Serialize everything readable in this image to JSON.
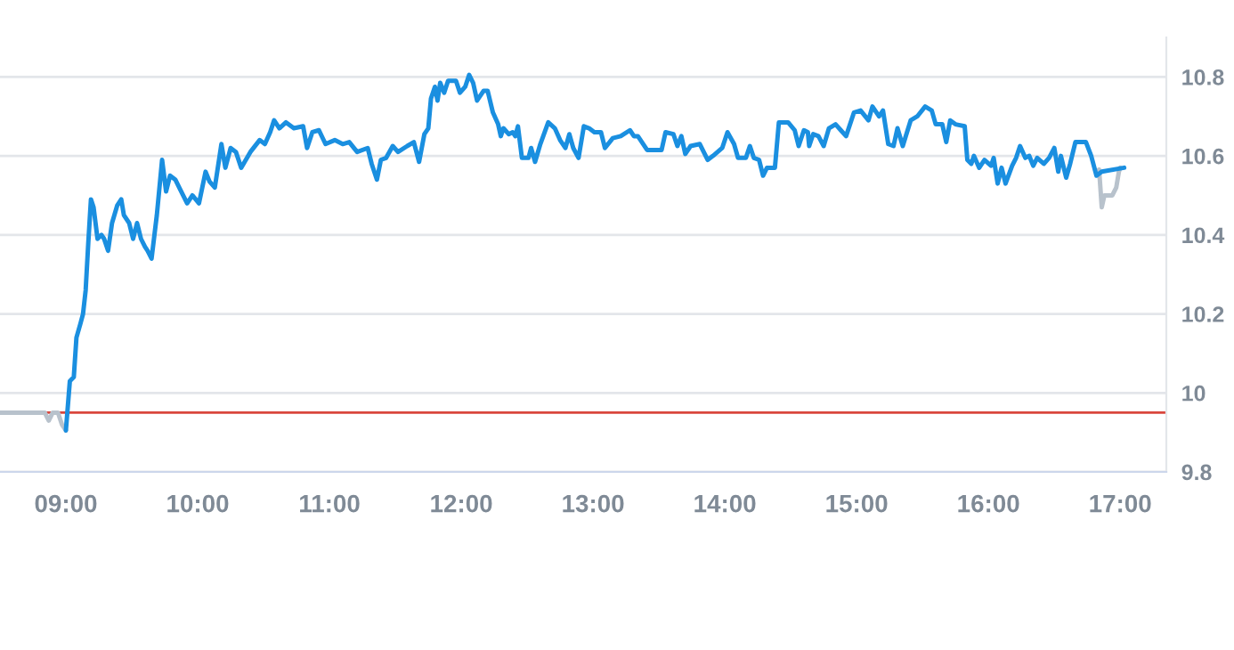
{
  "chart_data": {
    "type": "line",
    "xlim": [
      8.5,
      17.35
    ],
    "ylim": [
      9.8,
      10.9
    ],
    "xticks": [
      {
        "value": 9,
        "label": "09:00"
      },
      {
        "value": 10,
        "label": "10:00"
      },
      {
        "value": 11,
        "label": "11:00"
      },
      {
        "value": 12,
        "label": "12:00"
      },
      {
        "value": 13,
        "label": "13:00"
      },
      {
        "value": 14,
        "label": "14:00"
      },
      {
        "value": 15,
        "label": "15:00"
      },
      {
        "value": 16,
        "label": "16:00"
      },
      {
        "value": 17,
        "label": "17:00"
      }
    ],
    "yticks": [
      9.8,
      10,
      10.2,
      10.4,
      10.6,
      10.8
    ],
    "grid": "y",
    "line_style": "solid",
    "marker": "none",
    "ref_lines": [
      {
        "axis": "y",
        "value": 9.95,
        "color": "#d9463c"
      }
    ],
    "series": [
      {
        "color": "#b8c2cc",
        "x": [
          8.5,
          8.84,
          8.87,
          8.9,
          8.94,
          8.97,
          9.0
        ],
        "values": [
          9.95,
          9.95,
          9.93,
          9.95,
          9.95,
          9.92,
          9.905
        ]
      },
      {
        "color": "#b8c2cc",
        "x": [
          16.84,
          16.86,
          16.88,
          16.94,
          16.97,
          16.99,
          17.0
        ],
        "values": [
          10.565,
          10.47,
          10.5,
          10.5,
          10.52,
          10.56,
          10.57
        ]
      },
      {
        "color": "#1a8fe0",
        "x": [
          9.0,
          9.03,
          9.06,
          9.08,
          9.11,
          9.13,
          9.15,
          9.17,
          9.19,
          9.21,
          9.24,
          9.27,
          9.29,
          9.32,
          9.35,
          9.39,
          9.42,
          9.44,
          9.48,
          9.51,
          9.54,
          9.57,
          9.6,
          9.62,
          9.65,
          9.69,
          9.73,
          9.76,
          9.79,
          9.83,
          9.86,
          9.92,
          9.96,
          10.01,
          10.06,
          10.09,
          10.13,
          10.18,
          10.21,
          10.25,
          10.29,
          10.33,
          10.4,
          10.47,
          10.51,
          10.55,
          10.58,
          10.62,
          10.67,
          10.73,
          10.8,
          10.83,
          10.87,
          10.92,
          10.97,
          11.04,
          11.1,
          11.15,
          11.21,
          11.29,
          11.32,
          11.36,
          11.39,
          11.43,
          11.48,
          11.52,
          11.59,
          11.64,
          11.68,
          11.72,
          11.75,
          11.77,
          11.8,
          11.82,
          11.84,
          11.87,
          11.9,
          11.96,
          11.99,
          12.03,
          12.06,
          12.09,
          12.12,
          12.17,
          12.2,
          12.24,
          12.28,
          12.3,
          12.32,
          12.36,
          12.39,
          12.41,
          12.43,
          12.46,
          12.51,
          12.53,
          12.56,
          12.6,
          12.66,
          12.71,
          12.75,
          12.79,
          12.82,
          12.85,
          12.89,
          12.93,
          12.97,
          13.01,
          13.06,
          13.09,
          13.15,
          13.21,
          13.28,
          13.31,
          13.34,
          13.41,
          13.52,
          13.55,
          13.61,
          13.64,
          13.67,
          13.7,
          13.74,
          13.81,
          13.87,
          13.91,
          13.98,
          14.02,
          14.07,
          14.1,
          14.16,
          14.19,
          14.22,
          14.26,
          14.29,
          14.32,
          14.38,
          14.41,
          14.48,
          14.53,
          14.56,
          14.6,
          14.63,
          14.64,
          14.67,
          14.71,
          14.75,
          14.79,
          14.84,
          14.88,
          14.92,
          14.98,
          15.03,
          15.09,
          15.12,
          15.17,
          15.2,
          15.24,
          15.28,
          15.31,
          15.35,
          15.41,
          15.46,
          15.52,
          15.57,
          15.6,
          15.65,
          15.68,
          15.71,
          15.75,
          15.82,
          15.84,
          15.87,
          15.89,
          15.93,
          15.97,
          16.02,
          16.04,
          16.07,
          16.1,
          16.13,
          16.18,
          16.21,
          16.24,
          16.28,
          16.31,
          16.34,
          16.37,
          16.42,
          16.46,
          16.5,
          16.53,
          16.55,
          16.59,
          16.62,
          16.66,
          16.74,
          16.78,
          16.82,
          16.86,
          17.03
        ],
        "values": [
          9.905,
          10.03,
          10.04,
          10.14,
          10.175,
          10.2,
          10.26,
          10.38,
          10.49,
          10.47,
          10.39,
          10.4,
          10.39,
          10.36,
          10.43,
          10.475,
          10.49,
          10.45,
          10.43,
          10.39,
          10.43,
          10.39,
          10.37,
          10.36,
          10.34,
          10.45,
          10.59,
          10.51,
          10.55,
          10.54,
          10.52,
          10.48,
          10.5,
          10.48,
          10.56,
          10.535,
          10.52,
          10.63,
          10.57,
          10.62,
          10.61,
          10.57,
          10.61,
          10.64,
          10.63,
          10.66,
          10.69,
          10.67,
          10.685,
          10.67,
          10.675,
          10.62,
          10.66,
          10.665,
          10.63,
          10.64,
          10.63,
          10.635,
          10.61,
          10.62,
          10.58,
          10.54,
          10.59,
          10.595,
          10.625,
          10.61,
          10.625,
          10.635,
          10.585,
          10.655,
          10.67,
          10.745,
          10.775,
          10.74,
          10.785,
          10.76,
          10.79,
          10.79,
          10.76,
          10.775,
          10.805,
          10.785,
          10.74,
          10.765,
          10.765,
          10.71,
          10.68,
          10.65,
          10.67,
          10.655,
          10.66,
          10.65,
          10.675,
          10.595,
          10.595,
          10.62,
          10.585,
          10.63,
          10.685,
          10.67,
          10.64,
          10.62,
          10.655,
          10.62,
          10.595,
          10.675,
          10.67,
          10.66,
          10.66,
          10.62,
          10.645,
          10.65,
          10.665,
          10.65,
          10.65,
          10.615,
          10.615,
          10.66,
          10.655,
          10.625,
          10.65,
          10.605,
          10.625,
          10.63,
          10.59,
          10.6,
          10.62,
          10.66,
          10.63,
          10.595,
          10.595,
          10.625,
          10.595,
          10.59,
          10.55,
          10.57,
          10.57,
          10.685,
          10.685,
          10.665,
          10.625,
          10.665,
          10.66,
          10.625,
          10.655,
          10.65,
          10.625,
          10.67,
          10.68,
          10.665,
          10.65,
          10.71,
          10.715,
          10.69,
          10.725,
          10.7,
          10.715,
          10.63,
          10.625,
          10.67,
          10.625,
          10.69,
          10.7,
          10.725,
          10.715,
          10.68,
          10.68,
          10.635,
          10.69,
          10.68,
          10.675,
          10.59,
          10.58,
          10.6,
          10.57,
          10.59,
          10.575,
          10.595,
          10.53,
          10.57,
          10.53,
          10.575,
          10.595,
          10.625,
          10.595,
          10.6,
          10.575,
          10.595,
          10.58,
          10.595,
          10.62,
          10.56,
          10.6,
          10.545,
          10.58,
          10.635,
          10.635,
          10.6,
          10.55,
          10.56,
          10.57
        ]
      }
    ]
  }
}
